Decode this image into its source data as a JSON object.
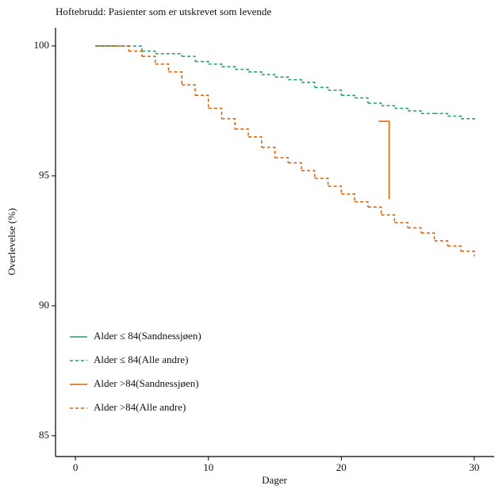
{
  "chart_data": {
    "type": "step-line",
    "title": "Hoftebrudd: Pasienter som er utskrevet som levende",
    "x_label": "Dager",
    "y_label": "Overlevelse (%)",
    "xlim": [
      -1.5,
      31.5
    ],
    "ylim": [
      84.2,
      100.7
    ],
    "xticks": [
      0,
      10,
      20,
      30
    ],
    "yticks": [
      85,
      90,
      95,
      100
    ],
    "legend_position": "bottom-left",
    "series": [
      {
        "name": "Alder ≤ 84(Sandnessjøen)",
        "color": "#1b9e77",
        "dashed": false,
        "x": [
          1.5,
          3
        ],
        "values": [
          100,
          100
        ]
      },
      {
        "name": "Alder ≤ 84(Alle andre)",
        "color": "#1b9e77",
        "dashed": true,
        "x": [
          1.5,
          3.5,
          5,
          6,
          8,
          9,
          10,
          11,
          12,
          13,
          14,
          15,
          16,
          17,
          18,
          19,
          20,
          21,
          22,
          23,
          24,
          25,
          26,
          27,
          28,
          29,
          30
        ],
        "values": [
          100,
          100,
          99.8,
          99.7,
          99.6,
          99.4,
          99.3,
          99.2,
          99.1,
          99.0,
          98.9,
          98.8,
          98.7,
          98.6,
          98.4,
          98.3,
          98.1,
          98.0,
          97.8,
          97.7,
          97.6,
          97.5,
          97.4,
          97.4,
          97.3,
          97.2,
          97.1
        ]
      },
      {
        "name": "Alder >84(Sandnessjøen)",
        "color": "#d95f02",
        "dashed": false,
        "x": [
          22.8,
          23.6
        ],
        "values": [
          97.1,
          94.1
        ]
      },
      {
        "name": "Alder >84(Alle andre)",
        "color": "#d95f02",
        "dashed": true,
        "x": [
          1.5,
          3,
          4,
          5,
          6,
          7,
          8,
          9,
          10,
          11,
          12,
          13,
          14,
          15,
          16,
          17,
          18,
          19,
          20,
          21,
          22,
          23,
          24,
          25,
          26,
          27,
          28,
          29,
          30
        ],
        "values": [
          100,
          100,
          99.8,
          99.6,
          99.3,
          99.0,
          98.5,
          98.1,
          97.6,
          97.2,
          96.8,
          96.5,
          96.1,
          95.7,
          95.5,
          95.2,
          94.9,
          94.6,
          94.3,
          94.0,
          93.8,
          93.5,
          93.2,
          93.0,
          92.8,
          92.5,
          92.3,
          92.1,
          91.9
        ]
      }
    ]
  }
}
